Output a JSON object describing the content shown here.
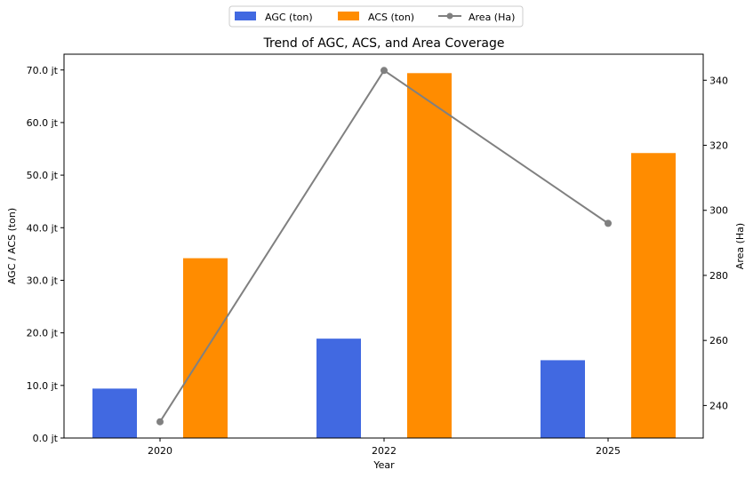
{
  "chart_data": {
    "type": "bar",
    "title": "Trend of AGC, ACS, and Area Coverage",
    "xlabel": "Year",
    "ylabel": "AGC / ACS (ton)",
    "y2label": "Area (Ha)",
    "categories": [
      "2020",
      "2022",
      "2025"
    ],
    "ylim": [
      0,
      73
    ],
    "y_ticks": [
      0,
      10,
      20,
      30,
      40,
      50,
      60,
      70
    ],
    "y_tick_labels": [
      "0.0 jt",
      "10.0 jt",
      "20.0 jt",
      "30.0 jt",
      "40.0 jt",
      "50.0 jt",
      "60.0 jt",
      "70.0 jt"
    ],
    "y2lim": [
      230,
      348
    ],
    "y2_ticks": [
      240,
      260,
      280,
      300,
      320,
      340
    ],
    "y2_tick_labels": [
      "240",
      "260",
      "280",
      "300",
      "320",
      "340"
    ],
    "series": [
      {
        "name": "AGC (ton)",
        "type": "bar",
        "axis": "left",
        "color": "#4169e1",
        "values": [
          9.4,
          18.9,
          14.8
        ]
      },
      {
        "name": "ACS (ton)",
        "type": "bar",
        "axis": "left",
        "color": "#ff8c00",
        "values": [
          34.2,
          69.4,
          54.2
        ]
      },
      {
        "name": "Area (Ha)",
        "type": "line",
        "axis": "right",
        "color": "#808080",
        "values": [
          235,
          343,
          296
        ]
      }
    ],
    "legend_position": "top-center",
    "grid": false
  }
}
